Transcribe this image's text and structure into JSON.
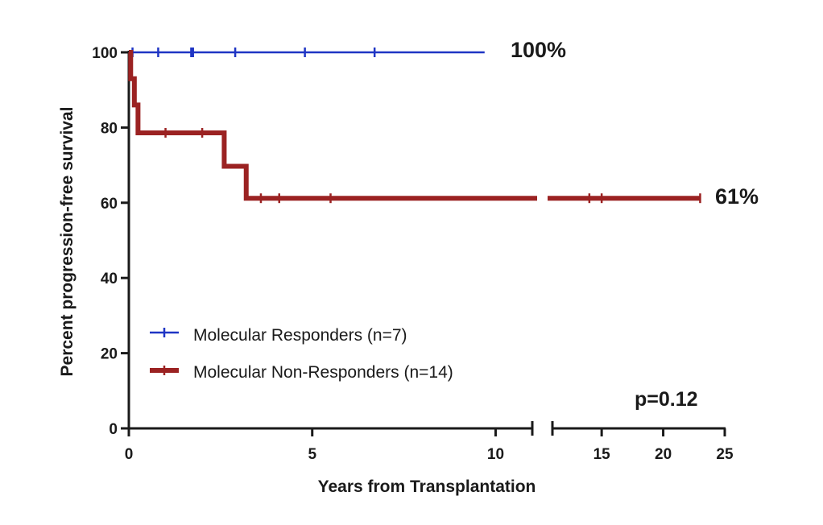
{
  "chart_data": {
    "type": "line",
    "subtype": "kaplan-meier step survival curve",
    "xlabel": "Years from Transplantation",
    "ylabel": "Percent progression-free survival",
    "ylim": [
      0,
      100
    ],
    "y_ticks": [
      "0",
      "20",
      "40",
      "60",
      "80",
      "100"
    ],
    "x_axis_broken": true,
    "x_break_at": 11,
    "x_ticks_left": [
      "0",
      "5",
      "10"
    ],
    "x_ticks_right": [
      "15",
      "20",
      "25"
    ],
    "xlim_left": [
      0,
      11
    ],
    "xlim_right": [
      11,
      25
    ],
    "grid": false,
    "legend_position": "bottom-left",
    "series": [
      {
        "name": "Molecular Responders (n=7)",
        "color": "#1f35c4",
        "steps": [
          [
            0,
            100
          ],
          [
            9.7,
            100
          ]
        ],
        "censor_x": [
          0.1,
          0.8,
          1.7,
          1.75,
          2.9,
          4.8,
          6.7
        ],
        "end_label": "100%"
      },
      {
        "name": "Molecular Non-Responders (n=14)",
        "color": "#9b2222",
        "steps": [
          [
            0,
            100
          ],
          [
            0.05,
            93
          ],
          [
            0.15,
            86
          ],
          [
            0.25,
            78.6
          ],
          [
            2.6,
            69.7
          ],
          [
            3.2,
            61.2
          ],
          [
            23,
            61.2
          ]
        ],
        "censor_x": [
          1.0,
          2.0,
          3.6,
          4.1,
          5.5,
          14.0,
          15.0,
          23.0
        ],
        "end_label": "61%"
      }
    ],
    "annotation": "p=0.12"
  }
}
